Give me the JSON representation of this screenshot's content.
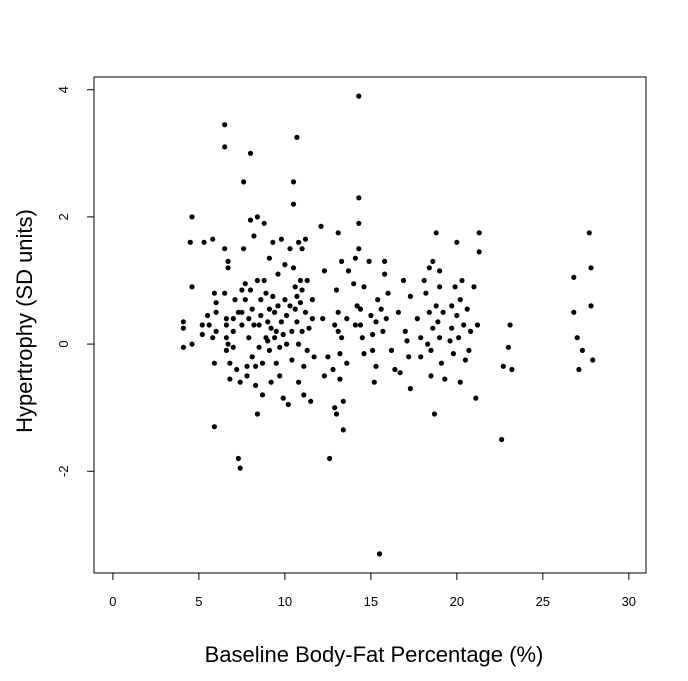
{
  "chart_data": {
    "type": "scatter",
    "title": "",
    "xlabel": "Baseline Body-Fat Percentage (%)",
    "ylabel": "Hypertrophy (SD units)",
    "xlim": [
      -1.1,
      31.0
    ],
    "ylim": [
      -3.6,
      4.2
    ],
    "xticks": [
      0,
      5,
      10,
      15,
      20,
      25,
      30
    ],
    "yticks": [
      -2,
      0,
      2,
      4
    ],
    "xtick_labels": [
      "0",
      "5",
      "10",
      "15",
      "20",
      "25",
      "30"
    ],
    "ytick_labels": [
      "-2",
      "0",
      "2",
      "4"
    ],
    "grid": false,
    "legend": "none",
    "marker_color": "#000000",
    "points": [
      [
        4.1,
        0.35
      ],
      [
        4.1,
        0.25
      ],
      [
        4.1,
        -0.05
      ],
      [
        4.5,
        1.6
      ],
      [
        4.6,
        2.0
      ],
      [
        4.6,
        0.9
      ],
      [
        4.6,
        0
      ],
      [
        5.2,
        0.3
      ],
      [
        5.2,
        0.15
      ],
      [
        5.3,
        1.6
      ],
      [
        5.5,
        0.45
      ],
      [
        5.6,
        0.3
      ],
      [
        5.8,
        0.1
      ],
      [
        5.8,
        1.65
      ],
      [
        5.9,
        0.8
      ],
      [
        6.0,
        0.65
      ],
      [
        6.0,
        0.5
      ],
      [
        6.0,
        0.2
      ],
      [
        5.9,
        -1.3
      ],
      [
        5.9,
        -0.3
      ],
      [
        6.5,
        3.45
      ],
      [
        6.5,
        3.1
      ],
      [
        6.5,
        1.5
      ],
      [
        6.5,
        0.8
      ],
      [
        6.6,
        0.4
      ],
      [
        6.6,
        0.3
      ],
      [
        6.6,
        0.1
      ],
      [
        6.6,
        -0.1
      ],
      [
        6.7,
        1.3
      ],
      [
        6.7,
        1.2
      ],
      [
        6.7,
        0.0
      ],
      [
        6.8,
        -0.3
      ],
      [
        6.8,
        -0.55
      ],
      [
        7.0,
        0.4
      ],
      [
        7.0,
        0.2
      ],
      [
        7.0,
        -0.05
      ],
      [
        7.1,
        0.7
      ],
      [
        7.2,
        -0.4
      ],
      [
        7.3,
        0.5
      ],
      [
        7.3,
        -1.8
      ],
      [
        7.4,
        -1.95
      ],
      [
        7.4,
        -0.6
      ],
      [
        7.5,
        0.85
      ],
      [
        7.5,
        0.5
      ],
      [
        7.5,
        0.3
      ],
      [
        7.6,
        2.55
      ],
      [
        7.6,
        1.5
      ],
      [
        7.7,
        0.95
      ],
      [
        7.7,
        0.7
      ],
      [
        7.8,
        -0.35
      ],
      [
        7.8,
        -0.5
      ],
      [
        7.9,
        0.4
      ],
      [
        7.9,
        0.1
      ],
      [
        8.0,
        3.0
      ],
      [
        8.0,
        1.95
      ],
      [
        8.0,
        0.85
      ],
      [
        8.1,
        0.55
      ],
      [
        8.1,
        -0.2
      ],
      [
        8.2,
        1.7
      ],
      [
        8.2,
        0.3
      ],
      [
        8.3,
        -0.35
      ],
      [
        8.3,
        -0.65
      ],
      [
        8.4,
        2.0
      ],
      [
        8.4,
        1.0
      ],
      [
        8.4,
        -1.1
      ],
      [
        8.5,
        0.3
      ],
      [
        8.5,
        -0.05
      ],
      [
        8.6,
        0.7
      ],
      [
        8.6,
        0.45
      ],
      [
        8.7,
        -0.3
      ],
      [
        8.7,
        -0.8
      ],
      [
        8.8,
        1.9
      ],
      [
        8.8,
        1.0
      ],
      [
        8.9,
        0.8
      ],
      [
        8.9,
        0.1
      ],
      [
        9.0,
        0.35
      ],
      [
        9.0,
        0.05
      ],
      [
        9.1,
        1.35
      ],
      [
        9.1,
        0.55
      ],
      [
        9.1,
        -0.1
      ],
      [
        9.2,
        0.25
      ],
      [
        9.2,
        -0.6
      ],
      [
        9.3,
        1.6
      ],
      [
        9.3,
        0.75
      ],
      [
        9.4,
        0.5
      ],
      [
        9.4,
        0.1
      ],
      [
        9.5,
        0.2
      ],
      [
        9.5,
        -0.3
      ],
      [
        9.6,
        1.1
      ],
      [
        9.6,
        0.6
      ],
      [
        9.7,
        -0.05
      ],
      [
        9.7,
        -0.5
      ],
      [
        9.8,
        1.65
      ],
      [
        9.8,
        0.35
      ],
      [
        9.9,
        0.15
      ],
      [
        9.9,
        -0.85
      ],
      [
        10.0,
        1.25
      ],
      [
        10.0,
        0.7
      ],
      [
        10.1,
        0.45
      ],
      [
        10.1,
        0.0
      ],
      [
        10.2,
        -0.95
      ],
      [
        10.3,
        1.5
      ],
      [
        10.3,
        0.6
      ],
      [
        10.4,
        0.2
      ],
      [
        10.4,
        -0.25
      ],
      [
        10.5,
        2.55
      ],
      [
        10.5,
        2.2
      ],
      [
        10.5,
        1.2
      ],
      [
        10.6,
        0.9
      ],
      [
        10.6,
        0.55
      ],
      [
        10.7,
        3.25
      ],
      [
        10.7,
        0.75
      ],
      [
        10.7,
        0.35
      ],
      [
        10.8,
        1.6
      ],
      [
        10.8,
        0.0
      ],
      [
        10.8,
        -0.6
      ],
      [
        10.9,
        1.0
      ],
      [
        10.9,
        0.65
      ],
      [
        11.0,
        1.5
      ],
      [
        11.0,
        0.85
      ],
      [
        11.0,
        0.2
      ],
      [
        11.1,
        -0.35
      ],
      [
        11.1,
        -0.8
      ],
      [
        11.2,
        1.65
      ],
      [
        11.2,
        0.5
      ],
      [
        11.3,
        1.0
      ],
      [
        11.3,
        -0.1
      ],
      [
        11.4,
        0.25
      ],
      [
        11.5,
        -0.9
      ],
      [
        11.6,
        0.7
      ],
      [
        11.6,
        0.4
      ],
      [
        11.7,
        -0.2
      ],
      [
        12.1,
        1.85
      ],
      [
        12.2,
        0.4
      ],
      [
        12.3,
        1.15
      ],
      [
        12.3,
        -0.5
      ],
      [
        12.5,
        -0.2
      ],
      [
        12.6,
        -1.8
      ],
      [
        12.8,
        -0.4
      ],
      [
        12.9,
        0.3
      ],
      [
        12.9,
        -1.0
      ],
      [
        13.0,
        0.85
      ],
      [
        13.0,
        -1.1
      ],
      [
        13.1,
        1.75
      ],
      [
        13.1,
        0.5
      ],
      [
        13.1,
        0.2
      ],
      [
        13.2,
        -0.15
      ],
      [
        13.2,
        -0.55
      ],
      [
        13.3,
        1.3
      ],
      [
        13.3,
        0.1
      ],
      [
        13.4,
        -1.35
      ],
      [
        13.4,
        -0.9
      ],
      [
        13.6,
        0.4
      ],
      [
        13.6,
        -0.3
      ],
      [
        13.7,
        1.15
      ],
      [
        14.0,
        0.95
      ],
      [
        14.1,
        1.35
      ],
      [
        14.1,
        0.3
      ],
      [
        14.2,
        0.6
      ],
      [
        14.3,
        3.9
      ],
      [
        14.3,
        2.3
      ],
      [
        14.3,
        1.9
      ],
      [
        14.3,
        1.5
      ],
      [
        14.4,
        0.55
      ],
      [
        14.4,
        0.3
      ],
      [
        14.5,
        0.1
      ],
      [
        14.6,
        -0.15
      ],
      [
        14.6,
        0.9
      ],
      [
        14.9,
        1.3
      ],
      [
        15.0,
        0.45
      ],
      [
        15.1,
        0.15
      ],
      [
        15.1,
        -0.1
      ],
      [
        15.2,
        -0.6
      ],
      [
        15.3,
        0.35
      ],
      [
        15.3,
        -0.35
      ],
      [
        15.4,
        0.7
      ],
      [
        15.5,
        -3.3
      ],
      [
        15.6,
        0.55
      ],
      [
        15.7,
        0.2
      ],
      [
        15.8,
        1.3
      ],
      [
        15.8,
        1.1
      ],
      [
        15.9,
        0.4
      ],
      [
        16.0,
        0.8
      ],
      [
        16.2,
        -0.1
      ],
      [
        16.4,
        -0.4
      ],
      [
        16.6,
        0.5
      ],
      [
        16.7,
        -0.45
      ],
      [
        16.9,
        1.0
      ],
      [
        17.0,
        0.2
      ],
      [
        17.1,
        0.05
      ],
      [
        17.2,
        -0.2
      ],
      [
        17.3,
        -0.7
      ],
      [
        17.3,
        0.75
      ],
      [
        17.7,
        0.4
      ],
      [
        17.9,
        0.1
      ],
      [
        17.9,
        -0.2
      ],
      [
        18.1,
        1.0
      ],
      [
        18.2,
        0.8
      ],
      [
        18.3,
        0.0
      ],
      [
        18.4,
        1.2
      ],
      [
        18.4,
        0.5
      ],
      [
        18.5,
        -0.1
      ],
      [
        18.5,
        -0.5
      ],
      [
        18.6,
        1.3
      ],
      [
        18.6,
        0.25
      ],
      [
        18.7,
        -1.1
      ],
      [
        18.8,
        1.75
      ],
      [
        18.8,
        0.6
      ],
      [
        18.9,
        0.35
      ],
      [
        19.0,
        1.15
      ],
      [
        19.0,
        0.9
      ],
      [
        19.0,
        0.1
      ],
      [
        19.1,
        -0.3
      ],
      [
        19.2,
        0.5
      ],
      [
        19.3,
        -0.55
      ],
      [
        19.6,
        0.05
      ],
      [
        19.7,
        0.6
      ],
      [
        19.7,
        0.25
      ],
      [
        19.8,
        -0.15
      ],
      [
        19.9,
        0.9
      ],
      [
        20.0,
        1.6
      ],
      [
        20.0,
        0.45
      ],
      [
        20.1,
        0.1
      ],
      [
        20.2,
        0.7
      ],
      [
        20.2,
        -0.6
      ],
      [
        20.3,
        1.0
      ],
      [
        20.4,
        0.3
      ],
      [
        20.5,
        -0.25
      ],
      [
        20.6,
        0.55
      ],
      [
        20.7,
        -0.1
      ],
      [
        20.8,
        0.2
      ],
      [
        21.0,
        0.9
      ],
      [
        21.1,
        -0.85
      ],
      [
        21.2,
        0.3
      ],
      [
        21.3,
        1.75
      ],
      [
        21.3,
        1.45
      ],
      [
        22.7,
        -0.35
      ],
      [
        22.6,
        -1.5
      ],
      [
        23.0,
        -0.05
      ],
      [
        23.1,
        0.3
      ],
      [
        23.2,
        -0.4
      ],
      [
        26.8,
        1.05
      ],
      [
        26.8,
        0.5
      ],
      [
        27.0,
        0.1
      ],
      [
        27.1,
        -0.4
      ],
      [
        27.3,
        -0.1
      ],
      [
        27.7,
        1.75
      ],
      [
        27.8,
        1.2
      ],
      [
        27.8,
        0.6
      ],
      [
        27.9,
        -0.25
      ]
    ]
  }
}
